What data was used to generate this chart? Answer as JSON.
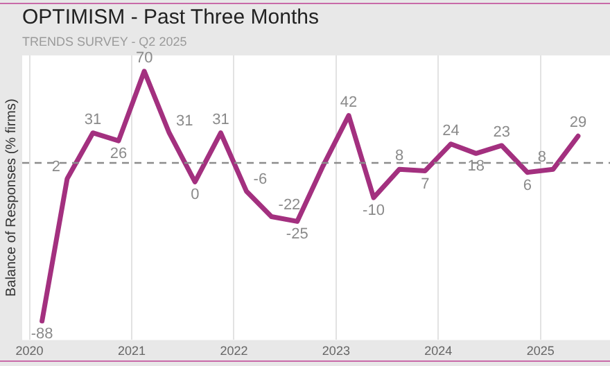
{
  "chart_data": {
    "type": "line",
    "title": "OPTIMISM - Past Three Months",
    "subtitle": "TRENDS SURVEY - Q2 2025",
    "ylabel": "Balance of Responses (% firms)",
    "x": [
      "2020-02-15",
      "2020-05-15",
      "2020-08-15",
      "2020-11-15",
      "2021-02-15",
      "2021-05-15",
      "2021-08-15",
      "2021-11-15",
      "2022-02-15",
      "2022-05-15",
      "2022-08-15",
      "2022-11-15",
      "2023-02-15",
      "2023-05-15",
      "2023-08-15",
      "2023-11-15",
      "2024-02-15",
      "2024-05-15",
      "2024-08-15",
      "2024-11-15",
      "2025-02-15",
      "2025-05-15"
    ],
    "series": [
      {
        "color": "#a3307f",
        "values": [
          -88,
          2,
          31,
          26,
          70,
          31,
          0,
          31,
          -6,
          -22,
          -25,
          10,
          42,
          -10,
          8,
          7,
          24,
          18,
          23,
          6,
          8,
          29
        ],
        "value_labels": [
          "-88",
          "2",
          "31",
          "26",
          "70",
          "31",
          "0",
          "31",
          "-6",
          "-22",
          "-25",
          null,
          "42",
          "-10",
          "8",
          "7",
          "24",
          "18",
          "23",
          "6",
          "8",
          "29"
        ]
      }
    ],
    "relative": false,
    "xlim": [
      "2019-12-06",
      "2025-09-06"
    ],
    "xticks": [
      "2020",
      "2021",
      "2022",
      "2023",
      "2024",
      "2025"
    ],
    "ref_lines": [
      {
        "axis": "y",
        "value": 12,
        "color": "#8c8c8c",
        "line_style": "dashed"
      }
    ],
    "grid": "x",
    "legend": false,
    "marker": "none",
    "line_style": "solid",
    "tick_labels": "x"
  }
}
